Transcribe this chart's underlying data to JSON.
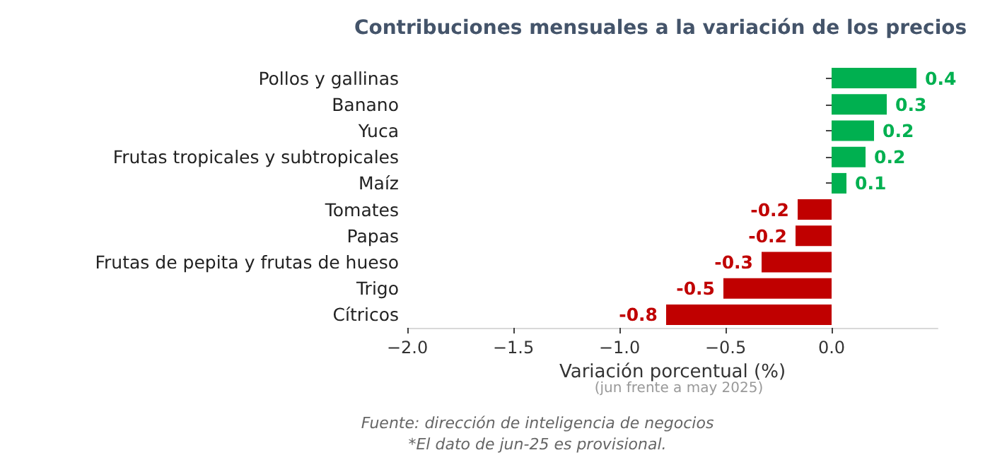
{
  "chart_data": {
    "type": "bar",
    "orientation": "horizontal",
    "title": "Contribuciones mensuales a la variación de los precios",
    "xlabel": "Variación porcentual (%)",
    "annotations": [
      "(jun frente a may 2025)",
      "Fuente: dirección de inteligencia de negocios",
      "*El dato de jun-25 es provisional."
    ],
    "categories": [
      "Pollos y gallinas",
      "Banano",
      "Yuca",
      "Frutas tropicales y subtropicales",
      "Maíz",
      "Tomates",
      "Papas",
      "Frutas de pepita y frutas de hueso",
      "Trigo",
      "Cítricos"
    ],
    "values": [
      0.4,
      0.26,
      0.2,
      0.16,
      0.07,
      -0.16,
      -0.17,
      -0.33,
      -0.51,
      -0.78
    ],
    "value_labels": [
      "0.4",
      "0.3",
      "0.2",
      "0.2",
      "0.1",
      "-0.2",
      "-0.2",
      "-0.3",
      "-0.5",
      "-0.8"
    ],
    "colors": [
      "#00b050",
      "#00b050",
      "#00b050",
      "#00b050",
      "#00b050",
      "#c00000",
      "#c00000",
      "#c00000",
      "#c00000",
      "#c00000"
    ],
    "xlim": [
      -2.0,
      0.5
    ],
    "xticks": [
      {
        "value": -2.0,
        "label": "−2.0"
      },
      {
        "value": -1.5,
        "label": "−1.5"
      },
      {
        "value": -1.0,
        "label": "−1.0"
      },
      {
        "value": -0.5,
        "label": "−0.5"
      },
      {
        "value": 0.0,
        "label": "0.0"
      }
    ],
    "grid": false
  }
}
